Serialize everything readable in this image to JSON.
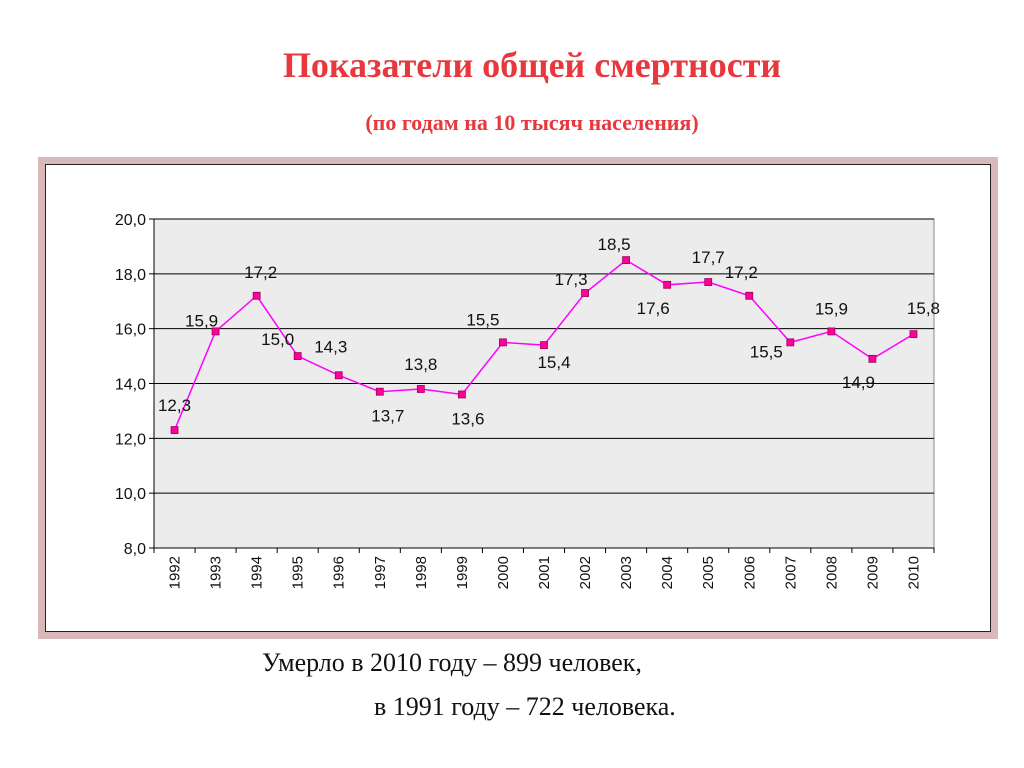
{
  "title": "Показатели общей смертности",
  "subtitle": "(по годам на 10 тысяч населения)",
  "footer": {
    "line1": "Умерло в 2010 году – 899 человек,",
    "line2": "в 1991 году – 722 человека."
  },
  "colors": {
    "title": "#e8373d",
    "line": "#ff00ff",
    "marker": "#ff0099",
    "plot_bg": "#ececec",
    "frame": "#d9b8ba"
  },
  "chart_data": {
    "type": "line",
    "x": [
      "1992",
      "1993",
      "1994",
      "1995",
      "1996",
      "1997",
      "1998",
      "1999",
      "2000",
      "2001",
      "2002",
      "2003",
      "2004",
      "2005",
      "2006",
      "2007",
      "2008",
      "2009",
      "2010"
    ],
    "series": [
      {
        "values": [
          12.3,
          15.9,
          17.2,
          15.0,
          14.3,
          13.7,
          13.8,
          13.6,
          15.5,
          15.4,
          17.3,
          18.5,
          17.6,
          17.7,
          17.2,
          15.5,
          15.9,
          14.9,
          15.8
        ],
        "labels": [
          "12,3",
          "15,9",
          "17,2",
          "15,0",
          "14,3",
          "13,7",
          "13,8",
          "13,6",
          "15,5",
          "15,4",
          "17,3",
          "18,5",
          "17,6",
          "17,7",
          "17,2",
          "15,5",
          "15,9",
          "14,9",
          "15,8"
        ]
      }
    ],
    "ylim": [
      8.0,
      20.0
    ],
    "yticks": [
      "8,0",
      "10,0",
      "12,0",
      "14,0",
      "16,0",
      "18,0",
      "20,0"
    ],
    "grid": true,
    "legend": false
  }
}
